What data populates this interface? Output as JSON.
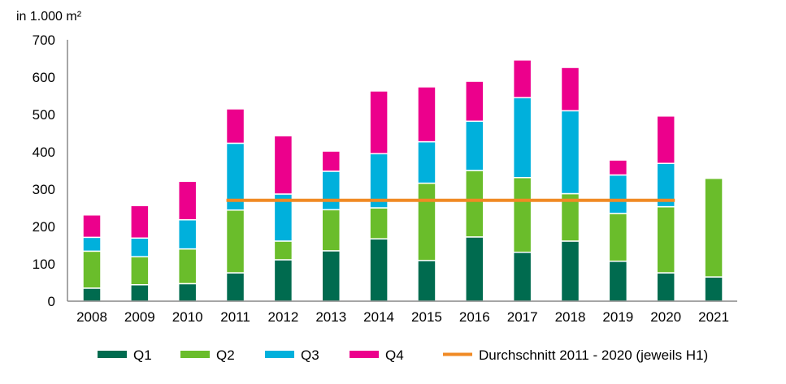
{
  "chart_data": {
    "type": "bar",
    "stacked": true,
    "ylabel": "in 1.000 m²",
    "ylim": [
      0,
      700
    ],
    "yticks": [
      0,
      100,
      200,
      300,
      400,
      500,
      600,
      700
    ],
    "grid": false,
    "legend_position": "bottom",
    "categories": [
      "2008",
      "2009",
      "2010",
      "2011",
      "2012",
      "2013",
      "2014",
      "2015",
      "2016",
      "2017",
      "2018",
      "2019",
      "2020",
      "2021"
    ],
    "series": [
      {
        "name": "Q1",
        "color": "#006B4F",
        "values": [
          35,
          44,
          47,
          76,
          111,
          135,
          167,
          109,
          172,
          131,
          161,
          107,
          76,
          65
        ]
      },
      {
        "name": "Q2",
        "color": "#6ABD2B",
        "values": [
          99,
          75,
          93,
          168,
          50,
          110,
          83,
          207,
          178,
          200,
          127,
          128,
          177,
          264
        ]
      },
      {
        "name": "Q3",
        "color": "#00B0DC",
        "values": [
          37,
          50,
          78,
          179,
          126,
          103,
          145,
          111,
          132,
          214,
          222,
          103,
          116,
          null
        ]
      },
      {
        "name": "Q4",
        "color": "#EC008C",
        "values": [
          60,
          87,
          103,
          92,
          156,
          54,
          168,
          147,
          107,
          101,
          116,
          40,
          127,
          null
        ]
      }
    ],
    "average_line": {
      "name": "Durchschnitt 2011 - 2020 (jeweils H1)",
      "color": "#F08A24",
      "value": 270,
      "from": "2011",
      "to": "2020"
    }
  }
}
